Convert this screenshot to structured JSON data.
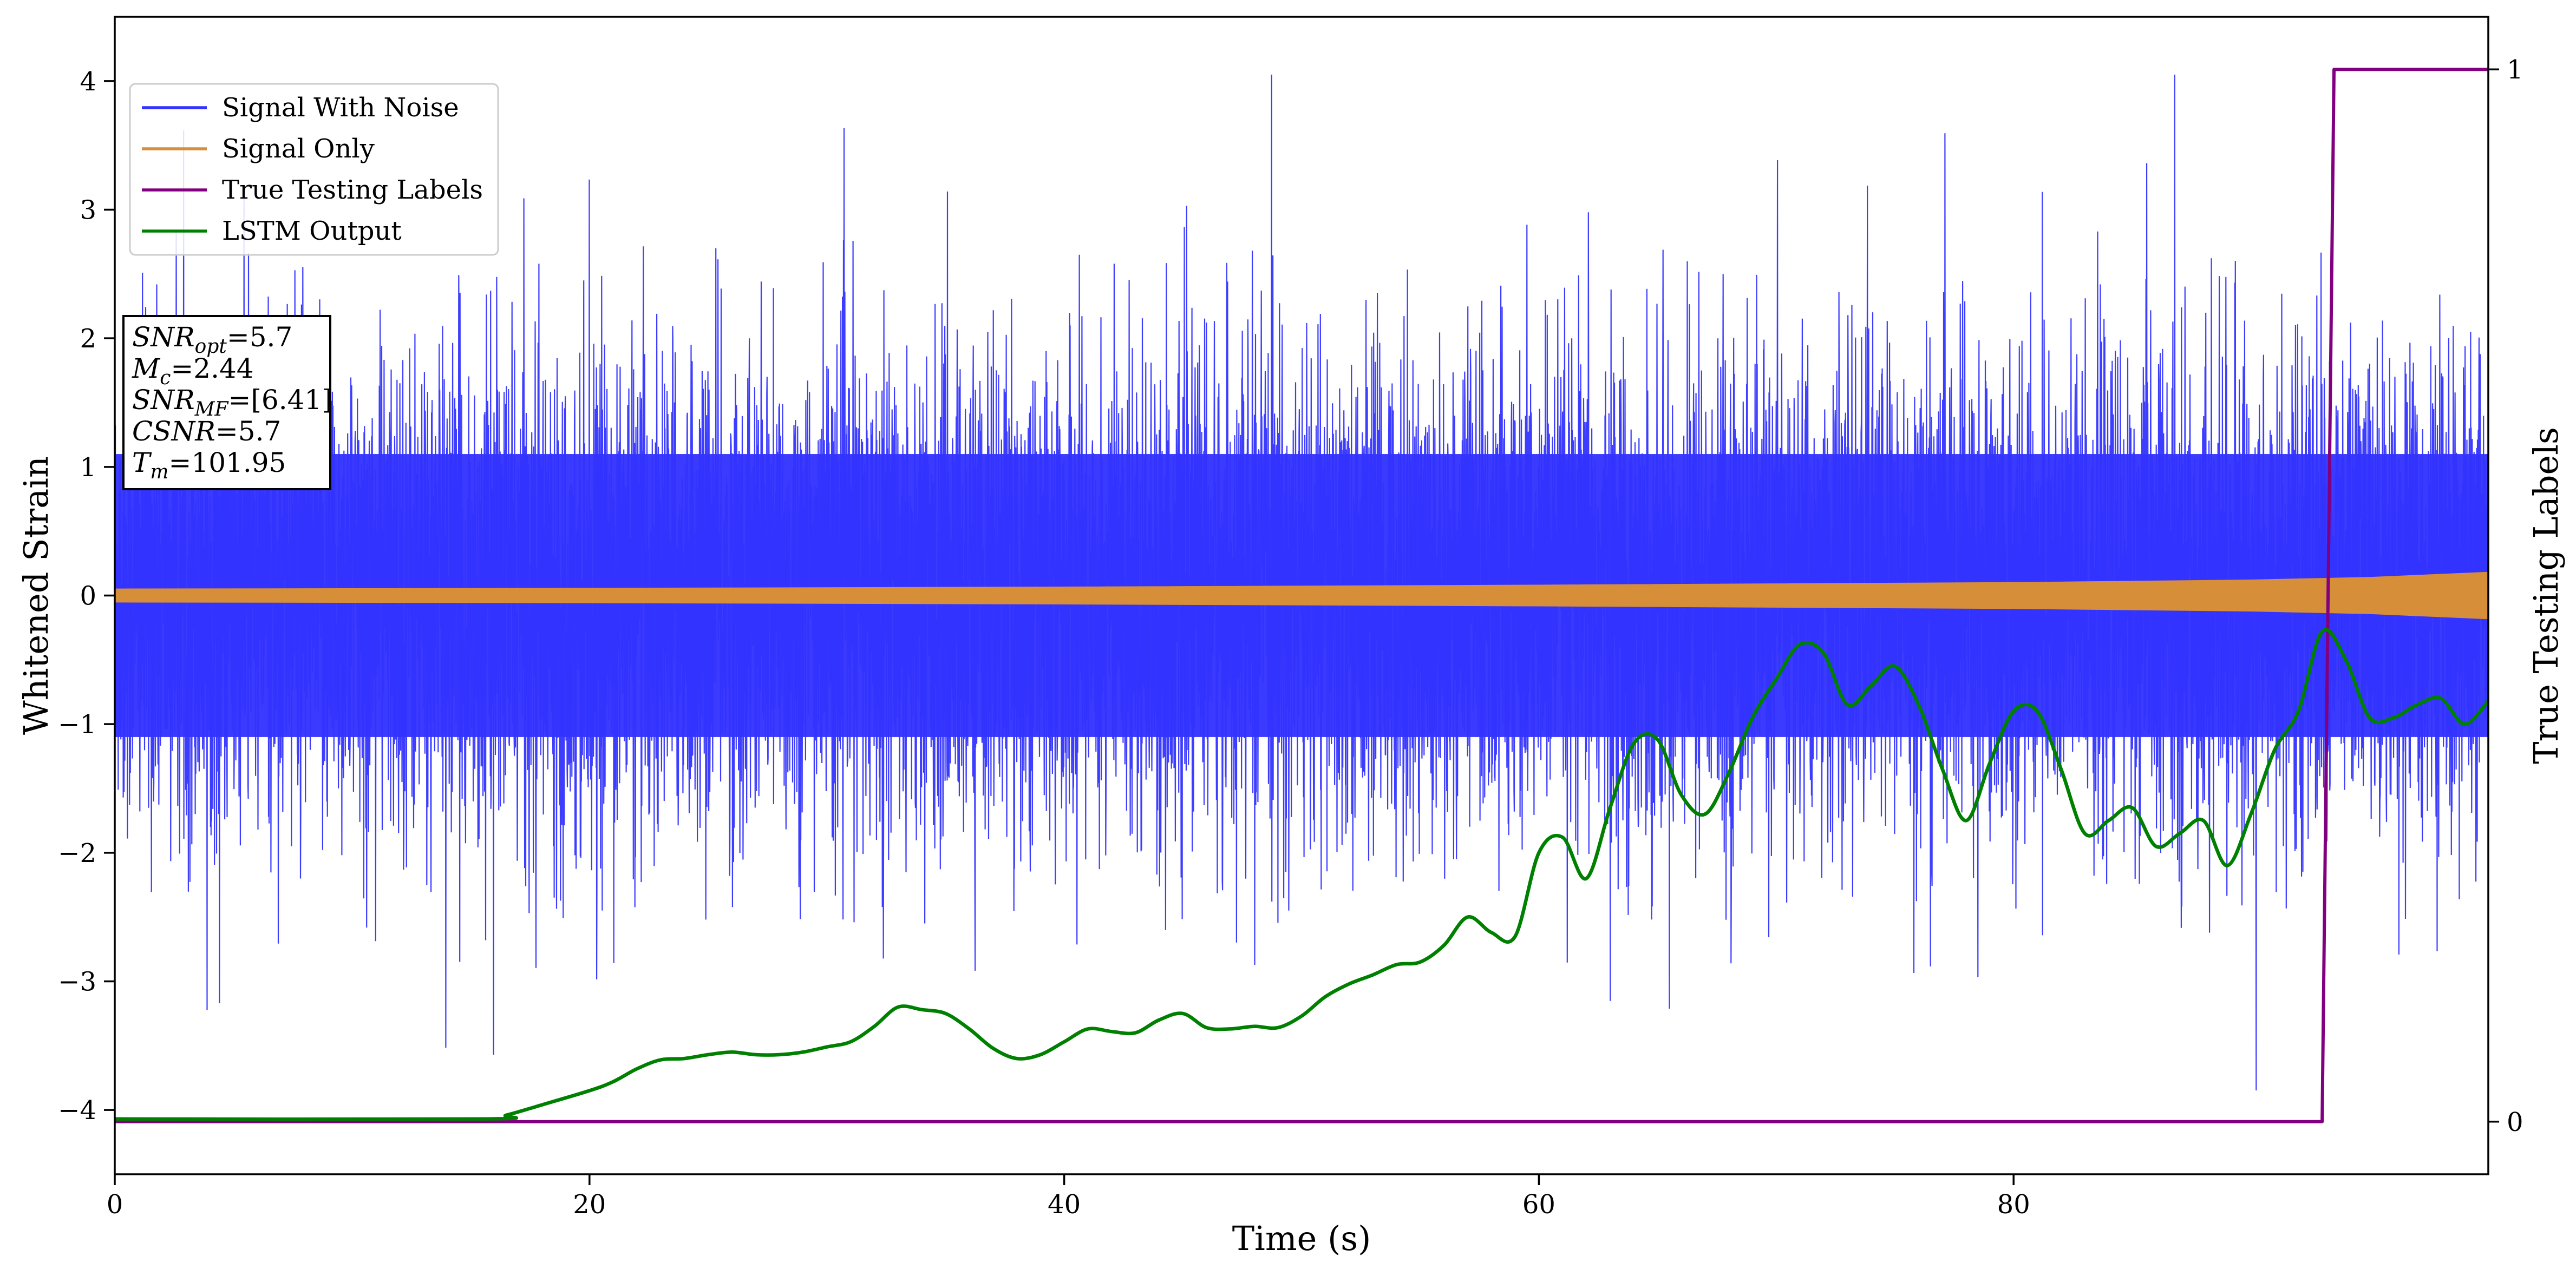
{
  "chart_data": {
    "type": "line",
    "title": "",
    "xlabel": "Time (s)",
    "ylabel": "Whitened Strain",
    "y2label": "True Testing Labels",
    "xlim": [
      0,
      100
    ],
    "ylim": [
      -4.5,
      4.5
    ],
    "y2lim": [
      -0.05,
      1.05
    ],
    "x_ticks": [
      0,
      20,
      40,
      60,
      80
    ],
    "y_ticks": [
      -4,
      -3,
      -2,
      -1,
      0,
      1,
      2,
      3,
      4
    ],
    "y2_ticks": [
      0,
      1
    ],
    "grid": false,
    "legend_position": "top-left",
    "series": [
      {
        "name": "Signal With Noise",
        "color": "#3333ff",
        "axis": "left",
        "kind": "noise-band",
        "typical_range": [
          -2.2,
          2.2
        ],
        "extreme_range": [
          -3.97,
          4.05
        ]
      },
      {
        "name": "Signal Only",
        "color": "#d68f38",
        "axis": "left",
        "kind": "envelope",
        "x": [
          0,
          20,
          40,
          60,
          80,
          90,
          95,
          100
        ],
        "amplitude": [
          0.05,
          0.055,
          0.065,
          0.08,
          0.1,
          0.12,
          0.14,
          0.18
        ]
      },
      {
        "name": "True Testing Labels",
        "color": "#800080",
        "axis": "right",
        "x": [
          0,
          93.0,
          93.5,
          100
        ],
        "values": [
          0,
          0,
          1,
          1
        ]
      },
      {
        "name": "LSTM Output",
        "color": "#008000",
        "axis": "left",
        "x": [
          0,
          15.5,
          16.5,
          18,
          20,
          21,
          22,
          23,
          24,
          25,
          26,
          27,
          28,
          29,
          30,
          31,
          32,
          33,
          34,
          35,
          36,
          37,
          38,
          39,
          40,
          41,
          42,
          43,
          44,
          45,
          46,
          47,
          48,
          49,
          50,
          51,
          52,
          53,
          54,
          55,
          56,
          57,
          58,
          59,
          60,
          61,
          62,
          63,
          64,
          65,
          66,
          67,
          68,
          69,
          70,
          71,
          72,
          73,
          74,
          75,
          76,
          77,
          78,
          79,
          80,
          81,
          82,
          83,
          84,
          85,
          86,
          87,
          88,
          89,
          90,
          91,
          92,
          93,
          94,
          95,
          96,
          97,
          98,
          99,
          100
        ],
        "values": [
          -4.07,
          -4.07,
          -4.04,
          -3.96,
          -3.85,
          -3.78,
          -3.68,
          -3.61,
          -3.6,
          -3.57,
          -3.55,
          -3.57,
          -3.57,
          -3.55,
          -3.51,
          -3.47,
          -3.35,
          -3.2,
          -3.22,
          -3.25,
          -3.37,
          -3.52,
          -3.6,
          -3.57,
          -3.47,
          -3.37,
          -3.39,
          -3.4,
          -3.3,
          -3.25,
          -3.36,
          -3.37,
          -3.35,
          -3.36,
          -3.27,
          -3.12,
          -3.02,
          -2.95,
          -2.87,
          -2.85,
          -2.72,
          -2.5,
          -2.62,
          -2.65,
          -2.0,
          -1.88,
          -2.2,
          -1.65,
          -1.15,
          -1.12,
          -1.55,
          -1.7,
          -1.38,
          -0.95,
          -0.65,
          -0.38,
          -0.45,
          -0.85,
          -0.7,
          -0.55,
          -0.85,
          -1.35,
          -1.75,
          -1.3,
          -0.9,
          -0.9,
          -1.35,
          -1.85,
          -1.75,
          -1.65,
          -1.95,
          -1.85,
          -1.75,
          -2.1,
          -1.7,
          -1.2,
          -0.9,
          -0.28,
          -0.5,
          -0.95,
          -0.95,
          -0.85,
          -0.8,
          -1.0,
          -0.82
        ]
      }
    ],
    "annotation": {
      "position": "upper-left",
      "lines": [
        {
          "base": "SNR",
          "sub": "opt",
          "value": "=5.7"
        },
        {
          "base": "M",
          "sub": "c",
          "value": "=2.44"
        },
        {
          "base": "SNR",
          "sub": "MF",
          "value": "=[6.41]"
        },
        {
          "base": "CSNR",
          "sub": "",
          "value": "=5.7"
        },
        {
          "base": "T",
          "sub": "m",
          "value": "=101.95"
        }
      ]
    }
  }
}
